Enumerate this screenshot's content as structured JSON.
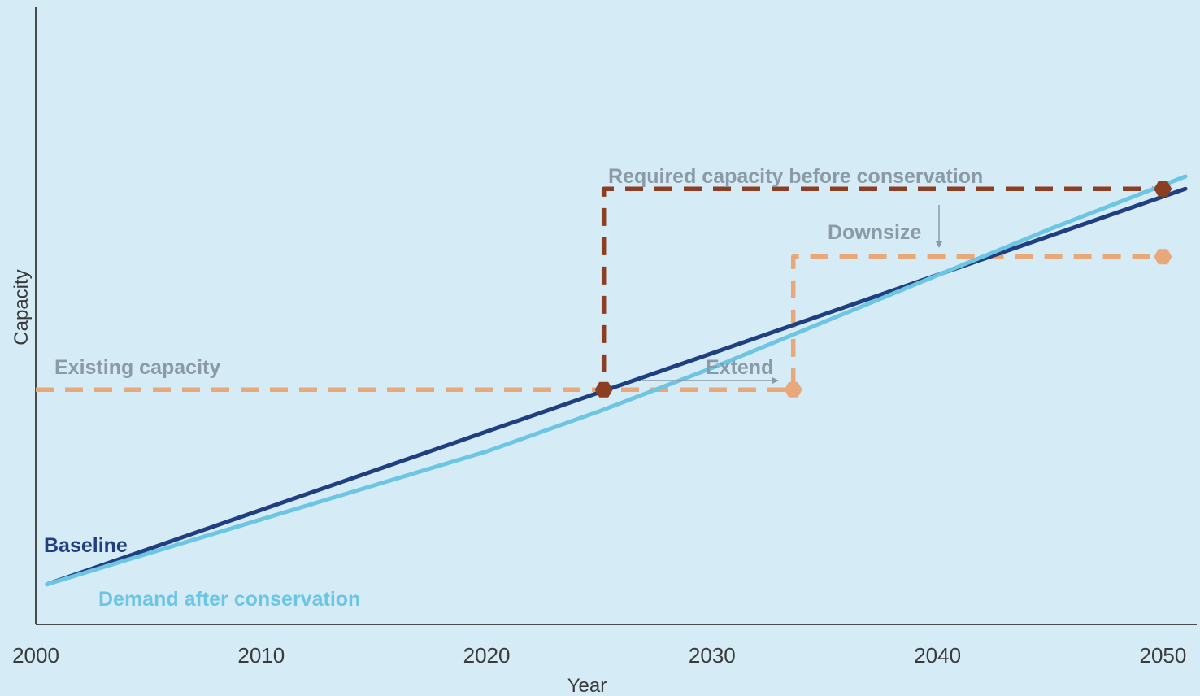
{
  "chart_data": {
    "type": "line",
    "xlabel": "Year",
    "ylabel": "Capacity",
    "xlim": [
      2000,
      2051.5
    ],
    "ylim": [
      0,
      100
    ],
    "x_ticks": [
      "2000",
      "2010",
      "2020",
      "2030",
      "2040",
      "2050"
    ],
    "grid": false,
    "series": [
      {
        "name": "Baseline",
        "color": "#1f3f80",
        "points": [
          [
            2000.5,
            6.5
          ],
          [
            2051,
            70.5
          ]
        ]
      },
      {
        "name": "Demand after conservation",
        "color": "#6cc5e3",
        "points": [
          [
            2000.5,
            6.5
          ],
          [
            2005,
            11.5
          ],
          [
            2010,
            17
          ],
          [
            2015,
            22.5
          ],
          [
            2020,
            28
          ],
          [
            2025,
            34.5
          ],
          [
            2030,
            41.5
          ],
          [
            2035,
            49
          ],
          [
            2040,
            56.5
          ],
          [
            2045,
            64
          ],
          [
            2051,
            72.5
          ]
        ]
      }
    ],
    "reference_lines": [
      {
        "name": "Required capacity before conservation",
        "color": "#8c3e22",
        "points": [
          [
            2000,
            38
          ],
          [
            2025.2,
            38
          ],
          [
            2025.2,
            70.5
          ],
          [
            2050,
            70.5
          ]
        ]
      },
      {
        "name": "Existing capacity",
        "color": "#e8a87a",
        "points": [
          [
            2000,
            38
          ],
          [
            2033.6,
            38
          ],
          [
            2033.6,
            59.5
          ],
          [
            2050,
            59.5
          ]
        ]
      }
    ],
    "markers": [
      {
        "x": 2025.2,
        "y": 38,
        "color": "#8c3e22"
      },
      {
        "x": 2050,
        "y": 70.5,
        "color": "#8c3e22"
      },
      {
        "x": 2033.6,
        "y": 38,
        "color": "#e8a87a"
      },
      {
        "x": 2050,
        "y": 59.5,
        "color": "#e8a87a"
      }
    ],
    "annotations": {
      "required": "Required capacity before conservation",
      "downsize": "Downsize",
      "existing": "Existing capacity",
      "extend": "Extend",
      "baseline": "Baseline",
      "demand": "Demand after conservation"
    },
    "annotation_colors": {
      "gray": "#8a9aa6",
      "baseline": "#1f3f80",
      "demand": "#6cc5e3"
    }
  }
}
